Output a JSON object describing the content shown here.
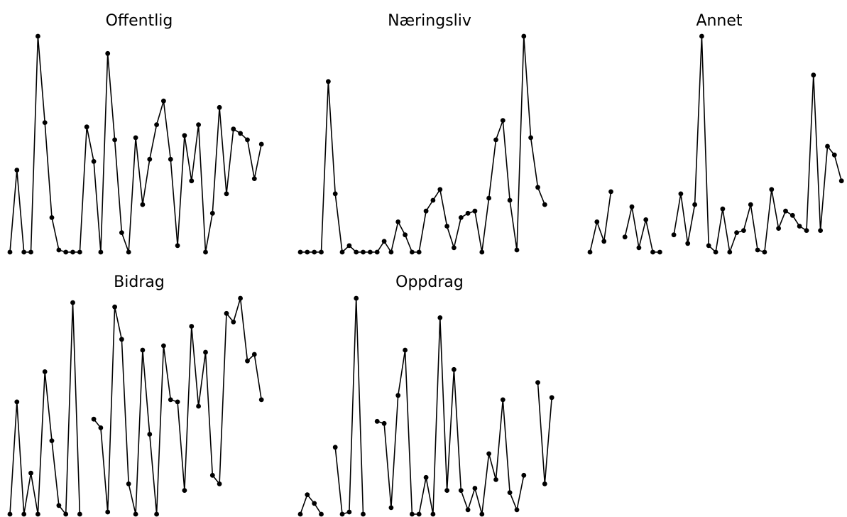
{
  "chart_data": [
    {
      "type": "line",
      "title": "Offentlig",
      "x": [
        1,
        2,
        3,
        4,
        5,
        6,
        7,
        8,
        9,
        10,
        11,
        12,
        13,
        14,
        15,
        16,
        17,
        18,
        19,
        20,
        21,
        22,
        23,
        24,
        25,
        26,
        27,
        28,
        29,
        30,
        31,
        32,
        33,
        34,
        35,
        36,
        37,
        38
      ],
      "values": [
        0,
        0.38,
        0,
        0,
        1.0,
        0.6,
        0.16,
        0.01,
        0,
        0,
        0,
        0.58,
        0.42,
        0,
        0.92,
        0.52,
        0.09,
        0,
        0.53,
        0.22,
        0.43,
        0.59,
        0.7,
        0.43,
        0.03,
        0.54,
        0.33,
        0.59,
        0,
        0.18,
        0.67,
        0.27,
        0.57,
        0.55,
        0.52,
        0.34,
        0.5,
        null
      ],
      "ylim": [
        0,
        1
      ]
    },
    {
      "type": "line",
      "title": "Næringsliv",
      "x": [
        1,
        2,
        3,
        4,
        5,
        6,
        7,
        8,
        9,
        10,
        11,
        12,
        13,
        14,
        15,
        16,
        17,
        18,
        19,
        20,
        21,
        22,
        23,
        24,
        25,
        26,
        27,
        28,
        29,
        30,
        31,
        32,
        33,
        34,
        35,
        36,
        37,
        38
      ],
      "values": [
        0,
        0,
        0,
        0,
        0.79,
        0.27,
        0,
        0.03,
        0,
        0,
        0,
        0,
        0.05,
        0,
        0.14,
        0.08,
        0,
        0,
        0.19,
        0.24,
        0.29,
        0.12,
        0.02,
        0.16,
        0.18,
        0.19,
        0,
        0.25,
        0.52,
        0.61,
        0.24,
        0.01,
        1.0,
        0.53,
        0.3,
        0.22,
        null,
        null
      ],
      "ylim": [
        0,
        1
      ]
    },
    {
      "type": "line",
      "title": "Annet",
      "x": [
        1,
        2,
        3,
        4,
        5,
        6,
        7,
        8,
        9,
        10,
        11,
        12,
        13,
        14,
        15,
        16,
        17,
        18,
        19,
        20,
        21,
        22,
        23,
        24,
        25,
        26,
        27,
        28,
        29,
        30,
        31,
        32,
        33,
        34,
        35,
        36,
        37,
        38
      ],
      "values": [
        0,
        0.14,
        0.05,
        0.28,
        null,
        0.07,
        0.21,
        0.02,
        0.15,
        0,
        0,
        null,
        0.08,
        0.27,
        0.04,
        0.22,
        1.0,
        0.03,
        0,
        0.2,
        0,
        0.09,
        0.1,
        0.22,
        0.01,
        0,
        0.29,
        0.11,
        0.19,
        0.17,
        0.12,
        0.1,
        0.82,
        0.1,
        0.49,
        0.45,
        0.33,
        null
      ],
      "ylim": [
        0,
        1
      ]
    },
    {
      "type": "line",
      "title": "Bidrag",
      "x": [
        1,
        2,
        3,
        4,
        5,
        6,
        7,
        8,
        9,
        10,
        11,
        12,
        13,
        14,
        15,
        16,
        17,
        18,
        19,
        20,
        21,
        22,
        23,
        24,
        25,
        26,
        27,
        28,
        29,
        30,
        31,
        32,
        33,
        34,
        35,
        36,
        37,
        38
      ],
      "values": [
        0,
        0.52,
        0,
        0.19,
        0,
        0.66,
        0.34,
        0.04,
        0,
        0.98,
        0,
        null,
        0.44,
        0.4,
        0.01,
        0.96,
        0.81,
        0.14,
        0,
        0.76,
        0.37,
        0,
        0.78,
        0.53,
        0.52,
        0.11,
        0.87,
        0.5,
        0.75,
        0.18,
        0.14,
        0.93,
        0.89,
        1.0,
        0.71,
        0.74,
        0.53,
        null
      ],
      "ylim": [
        0,
        1
      ]
    },
    {
      "type": "line",
      "title": "Oppdrag",
      "x": [
        1,
        2,
        3,
        4,
        5,
        6,
        7,
        8,
        9,
        10,
        11,
        12,
        13,
        14,
        15,
        16,
        17,
        18,
        19,
        20,
        21,
        22,
        23,
        24,
        25,
        26,
        27,
        28,
        29,
        30,
        31,
        32,
        33,
        34,
        35,
        36,
        37,
        38
      ],
      "values": [
        0,
        0.09,
        0.05,
        0,
        null,
        0.31,
        0,
        0.01,
        1.0,
        0,
        null,
        0.43,
        0.42,
        0.03,
        0.55,
        0.76,
        0,
        0,
        0.17,
        0,
        0.91,
        0.11,
        0.67,
        0.11,
        0.02,
        0.12,
        0,
        0.28,
        0.16,
        0.53,
        0.1,
        0.02,
        0.18,
        null,
        0.61,
        0.14,
        0.54,
        null
      ],
      "ylim": [
        0,
        1
      ]
    }
  ]
}
